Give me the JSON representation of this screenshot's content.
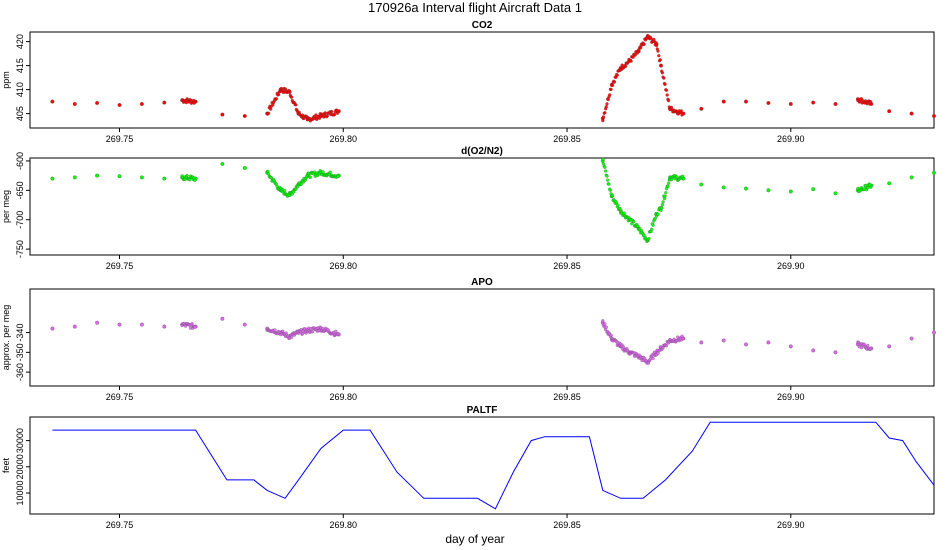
{
  "title": "170926a   Interval flight Aircraft Data 1",
  "xlabel": "day of year",
  "chart_data": [
    {
      "type": "scatter",
      "title": "CO2",
      "ylabel": "ppm",
      "color": "#ff0000",
      "xlim": [
        269.73,
        269.932
      ],
      "ylim": [
        402,
        422
      ],
      "xticks": [
        269.75,
        269.8,
        269.85,
        269.9
      ],
      "xtick_labels": [
        "269.75",
        "269.80",
        "269.85",
        "269.90"
      ],
      "yticks": [
        405,
        410,
        415,
        420
      ],
      "ytick_labels": [
        "405",
        "410",
        "415",
        "420"
      ],
      "series": [
        {
          "x": [
            269.735,
            269.74,
            269.745,
            269.75,
            269.755,
            269.76,
            269.764,
            269.767,
            269.773,
            269.778,
            269.783,
            269.786,
            269.788,
            269.79,
            269.792,
            269.795,
            269.799,
            269.858,
            269.86,
            269.862,
            269.864,
            269.866,
            269.868,
            269.87,
            269.871,
            269.873,
            269.876,
            269.88,
            269.885,
            269.89,
            269.895,
            269.9,
            269.905,
            269.91,
            269.915,
            269.918,
            269.922,
            269.927,
            269.932
          ],
          "y": [
            407.5,
            407.0,
            407.2,
            406.8,
            407.0,
            407.3,
            407.8,
            407.5,
            404.8,
            404.5,
            405.0,
            410.0,
            409.5,
            405.0,
            403.8,
            404.5,
            405.5,
            404.0,
            411.0,
            414.5,
            416.0,
            418.0,
            421.0,
            419.5,
            415.0,
            406.0,
            405.0,
            406.0,
            407.5,
            407.5,
            407.2,
            407.0,
            407.3,
            407.0,
            408.0,
            407.0,
            405.5,
            405.0,
            404.5
          ]
        }
      ]
    },
    {
      "type": "scatter",
      "title": "d(O2/N2)",
      "ylabel": "per meg",
      "color": "#00ff00",
      "xlim": [
        269.73,
        269.932
      ],
      "ylim": [
        -760,
        -595
      ],
      "xticks": [
        269.75,
        269.8,
        269.85,
        269.9
      ],
      "xtick_labels": [
        "269.75",
        "269.80",
        "269.85",
        "269.90"
      ],
      "yticks": [
        -600,
        -650,
        -700,
        -750
      ],
      "ytick_labels": [
        "-600",
        "-650",
        "-700",
        "-750"
      ],
      "series": [
        {
          "x": [
            269.735,
            269.74,
            269.745,
            269.75,
            269.755,
            269.76,
            269.764,
            269.767,
            269.773,
            269.778,
            269.783,
            269.786,
            269.788,
            269.79,
            269.792,
            269.795,
            269.799,
            269.858,
            269.86,
            269.862,
            269.864,
            269.866,
            269.868,
            269.87,
            269.871,
            269.873,
            269.876,
            269.88,
            269.885,
            269.89,
            269.895,
            269.9,
            269.905,
            269.91,
            269.915,
            269.918,
            269.922,
            269.927,
            269.932
          ],
          "y": [
            -630,
            -628,
            -625,
            -626,
            -628,
            -630,
            -628,
            -630,
            -605,
            -612,
            -620,
            -650,
            -658,
            -640,
            -625,
            -620,
            -625,
            -600,
            -660,
            -685,
            -700,
            -715,
            -735,
            -690,
            -680,
            -628,
            -630,
            -640,
            -645,
            -647,
            -650,
            -652,
            -648,
            -655,
            -650,
            -642,
            -638,
            -628,
            -620
          ]
        }
      ]
    },
    {
      "type": "scatter",
      "title": "APO",
      "ylabel": "approx. per meg",
      "color": "#dd66ee",
      "xlim": [
        269.73,
        269.932
      ],
      "ylim": [
        -367,
        -318
      ],
      "xticks": [
        269.75,
        269.8,
        269.85,
        269.9
      ],
      "xtick_labels": [
        "269.75",
        "269.80",
        "269.85",
        "269.90"
      ],
      "yticks": [
        -340,
        -350,
        -360
      ],
      "ytick_labels": [
        "-340",
        "-350",
        "-360"
      ],
      "series": [
        {
          "x": [
            269.735,
            269.74,
            269.745,
            269.75,
            269.755,
            269.76,
            269.764,
            269.767,
            269.773,
            269.778,
            269.783,
            269.786,
            269.788,
            269.79,
            269.792,
            269.795,
            269.799,
            269.858,
            269.86,
            269.862,
            269.864,
            269.866,
            269.868,
            269.87,
            269.871,
            269.873,
            269.876,
            269.88,
            269.885,
            269.89,
            269.895,
            269.9,
            269.905,
            269.91,
            269.915,
            269.918,
            269.922,
            269.927,
            269.932
          ],
          "y": [
            -338,
            -337,
            -335,
            -336,
            -336,
            -337,
            -336,
            -337,
            -333,
            -336,
            -338,
            -340,
            -342,
            -340,
            -339,
            -338,
            -341,
            -335,
            -343,
            -347,
            -350,
            -352,
            -355,
            -350,
            -348,
            -344,
            -343,
            -345,
            -344,
            -346,
            -345,
            -347,
            -349,
            -350,
            -346,
            -348,
            -347,
            -343,
            -340
          ]
        }
      ]
    },
    {
      "type": "line",
      "title": "PALTF",
      "ylabel": "feet",
      "color": "#0000ff",
      "xlim": [
        269.73,
        269.932
      ],
      "ylim": [
        2000,
        39000
      ],
      "xticks": [
        269.75,
        269.8,
        269.85,
        269.9
      ],
      "xtick_labels": [
        "269.75",
        "269.80",
        "269.85",
        "269.90"
      ],
      "yticks": [
        10000,
        20000,
        30000
      ],
      "ytick_labels": [
        "10000",
        "20000",
        "30000"
      ],
      "series": [
        {
          "x": [
            269.735,
            269.75,
            269.767,
            269.774,
            269.78,
            269.783,
            269.787,
            269.79,
            269.795,
            269.8,
            269.804,
            269.806,
            269.812,
            269.818,
            269.824,
            269.83,
            269.834,
            269.838,
            269.842,
            269.845,
            269.848,
            269.855,
            269.858,
            269.862,
            269.867,
            269.872,
            269.878,
            269.882,
            269.89,
            269.9,
            269.91,
            269.919,
            269.922,
            269.925,
            269.928,
            269.932
          ],
          "y": [
            34000,
            34000,
            34000,
            15000,
            15000,
            11000,
            8000,
            15000,
            27000,
            34000,
            34000,
            34000,
            18000,
            8000,
            8000,
            8000,
            4000,
            18000,
            30000,
            31500,
            31500,
            31500,
            11000,
            8000,
            8000,
            15000,
            26000,
            37000,
            37000,
            37000,
            37000,
            37000,
            31000,
            30000,
            22000,
            13000
          ]
        }
      ]
    }
  ]
}
